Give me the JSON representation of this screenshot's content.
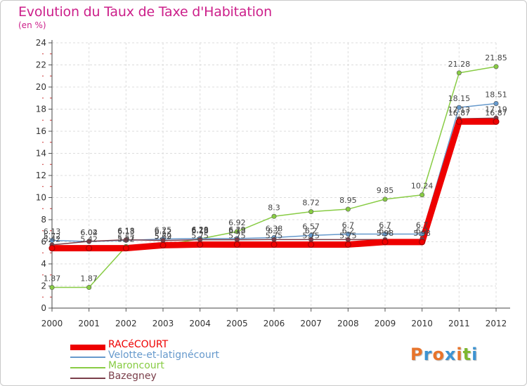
{
  "title": "Evolution du Taux de Taxe d'Habitation",
  "unit": "(en %)",
  "logo": {
    "text": "Proxiti",
    "letters": [
      "P",
      "r",
      "o",
      "x",
      "i",
      "t",
      "i"
    ],
    "colors": [
      "#e8742b",
      "#3d93d1",
      "#e8742b",
      "#3d93d1",
      "#e8742b",
      "#7db830",
      "#3d93d1"
    ]
  },
  "chart_data": {
    "type": "line",
    "title": "Evolution du Taux de Taxe d'Habitation",
    "ylabel": "(en %)",
    "xlabel": "",
    "categories": [
      "2000",
      "2001",
      "2002",
      "2003",
      "2004",
      "2005",
      "2006",
      "2007",
      "2008",
      "2009",
      "2010",
      "2011",
      "2012"
    ],
    "ylim": [
      0,
      24
    ],
    "yticks": [
      "0",
      "2",
      "4",
      "6",
      "8",
      "10",
      "12",
      "14",
      "16",
      "18",
      "20",
      "22",
      "24"
    ],
    "grid": true,
    "legend_position": "bottom-left",
    "series": [
      {
        "name": "RACéCOURT",
        "color": "#ee0000",
        "values": [
          5.42,
          5.42,
          5.42,
          5.69,
          5.75,
          5.75,
          5.75,
          5.75,
          5.75,
          5.98,
          5.98,
          16.87,
          16.87
        ],
        "labels": [
          "5.42",
          "5.42",
          "5.42",
          "5.69",
          "5.75",
          "5.75",
          "5.75",
          "5.75",
          "5.75",
          "5.98",
          "5.98",
          "16.87",
          "16.87"
        ]
      },
      {
        "name": "Velotte-et-latignécourt",
        "color": "#6699cc",
        "values": [
          6.13,
          6.02,
          6.13,
          6.25,
          6.29,
          6.29,
          6.38,
          6.57,
          6.7,
          6.7,
          6.7,
          18.15,
          18.51
        ],
        "labels": [
          "6.13",
          "6.02",
          "6.13",
          "6.25",
          "6.29",
          "6.29",
          "6.38",
          "6.57",
          "6.7",
          "6.7",
          "6.7",
          "18.15",
          "18.51"
        ]
      },
      {
        "name": "Maroncourt",
        "color": "#88cc44",
        "values": [
          1.87,
          1.87,
          5.57,
          5.72,
          6.26,
          6.92,
          8.3,
          8.72,
          8.95,
          9.85,
          10.24,
          21.28,
          21.85
        ],
        "labels": [
          "1.87",
          "1.87",
          "5.57",
          "5.72",
          "6.26",
          "6.92",
          "8.3",
          "8.72",
          "8.95",
          "9.85",
          "10.24",
          "21.28",
          "21.85"
        ]
      },
      {
        "name": "Bazegney",
        "color": "#7a3e4a",
        "values": [
          5.72,
          6.04,
          6.18,
          6.12,
          6.18,
          6.18,
          6.2,
          6.2,
          6.2,
          6.2,
          6.2,
          17.13,
          17.19
        ],
        "labels": [
          "5.72",
          "6.04",
          "6.18",
          "6.12",
          "6.18",
          "6.18",
          "6.2",
          "6.2",
          "6.2",
          "6.2",
          "6.2",
          "17.13",
          "17.19"
        ]
      }
    ]
  }
}
